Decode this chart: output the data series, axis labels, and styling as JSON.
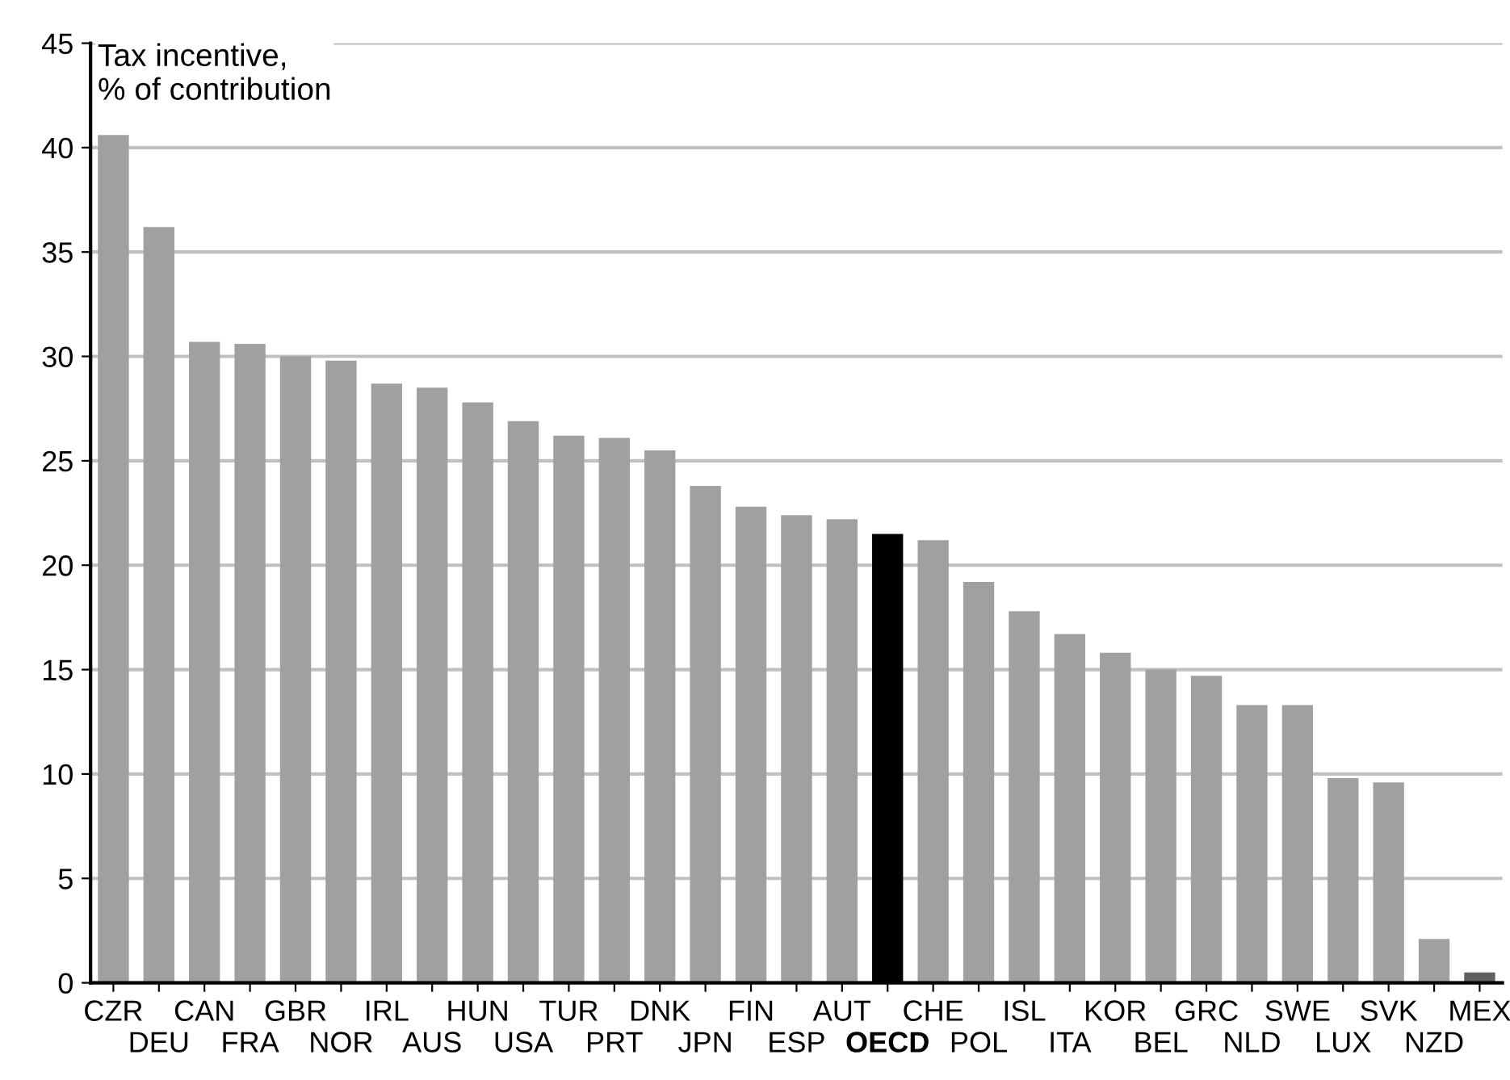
{
  "chart_data": {
    "type": "bar",
    "ylabel": "Tax incentive,\n% of contribution",
    "categories": [
      "CZR",
      "DEU",
      "CAN",
      "FRA",
      "GBR",
      "NOR",
      "IRL",
      "AUS",
      "HUN",
      "USA",
      "TUR",
      "PRT",
      "DNK",
      "JPN",
      "FIN",
      "ESP",
      "AUT",
      "OECD",
      "CHE",
      "POL",
      "ISL",
      "ITA",
      "KOR",
      "BEL",
      "GRC",
      "NLD",
      "SWE",
      "LUX",
      "SVK",
      "NZD",
      "MEX"
    ],
    "values": [
      40.6,
      36.2,
      30.7,
      30.6,
      30.0,
      29.8,
      28.7,
      28.5,
      27.8,
      26.9,
      26.2,
      26.1,
      25.5,
      23.8,
      22.8,
      22.4,
      22.2,
      21.5,
      21.2,
      19.2,
      17.8,
      16.7,
      15.8,
      15.0,
      14.7,
      13.3,
      13.3,
      9.8,
      9.6,
      2.1,
      0.5
    ],
    "colors": [
      "#a0a0a0",
      "#a0a0a0",
      "#a0a0a0",
      "#a0a0a0",
      "#a0a0a0",
      "#a0a0a0",
      "#a0a0a0",
      "#a0a0a0",
      "#a0a0a0",
      "#a0a0a0",
      "#a0a0a0",
      "#a0a0a0",
      "#a0a0a0",
      "#a0a0a0",
      "#a0a0a0",
      "#a0a0a0",
      "#a0a0a0",
      "#000000",
      "#a0a0a0",
      "#a0a0a0",
      "#a0a0a0",
      "#a0a0a0",
      "#a0a0a0",
      "#a0a0a0",
      "#a0a0a0",
      "#a0a0a0",
      "#a0a0a0",
      "#a0a0a0",
      "#a0a0a0",
      "#a0a0a0",
      "#606060"
    ],
    "ylim": [
      0,
      45
    ],
    "yticks": [
      0,
      5,
      10,
      15,
      20,
      25,
      30,
      35,
      40,
      45
    ],
    "grid": "y"
  }
}
